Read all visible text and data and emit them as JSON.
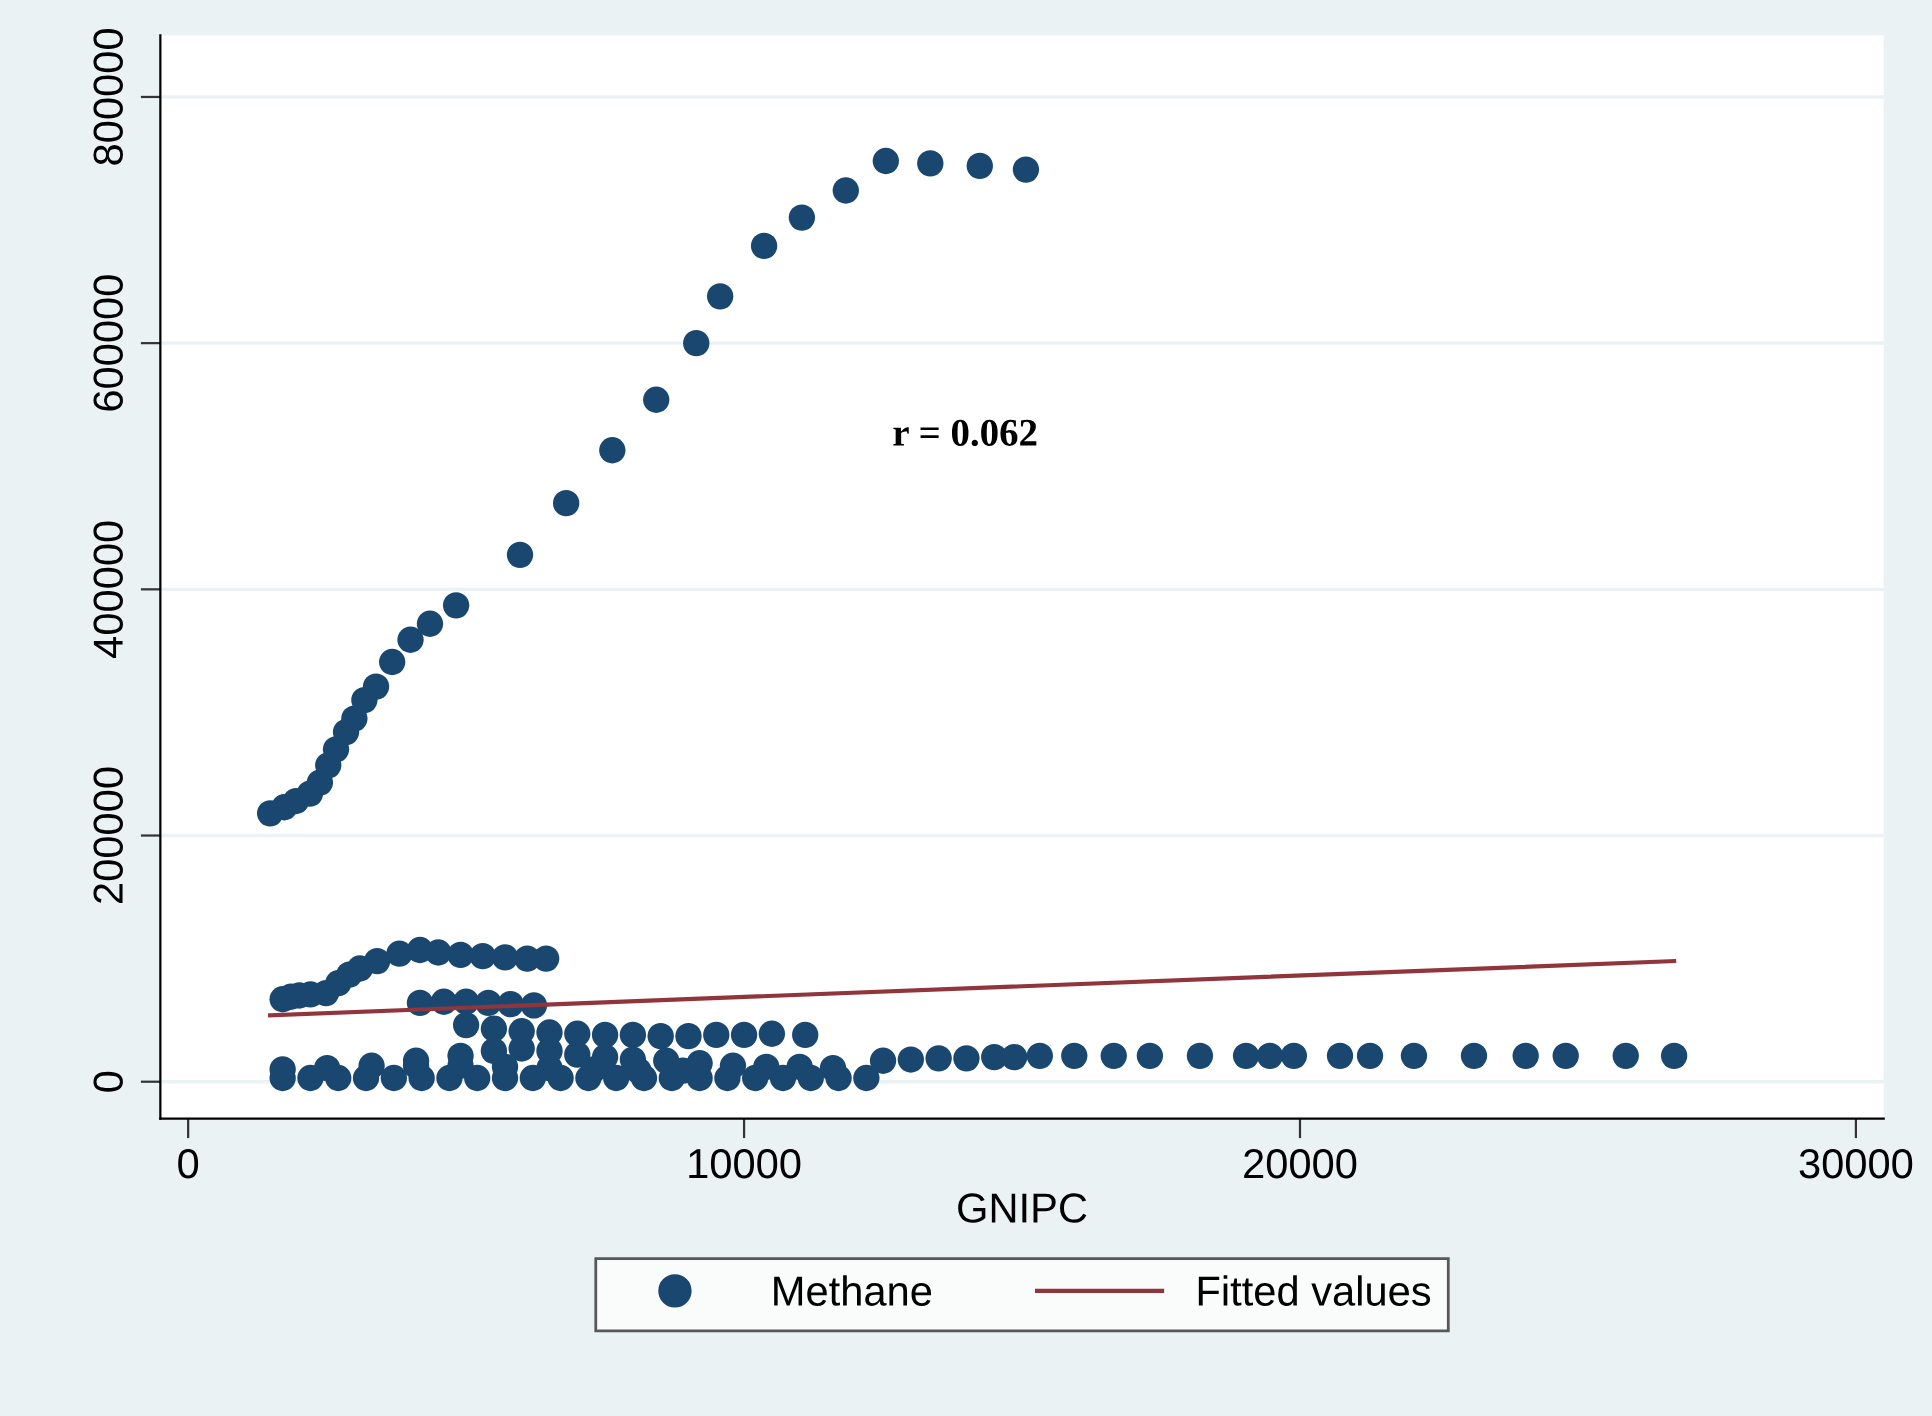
{
  "chart_data": {
    "type": "scatter",
    "xlabel": "GNIPC",
    "xlim": [
      -500,
      30500
    ],
    "ylim": [
      -30000,
      850000
    ],
    "xticks": [
      0,
      10000,
      20000,
      30000
    ],
    "yticks": [
      0,
      200000,
      400000,
      600000,
      800000
    ],
    "grid": "y",
    "legend": "bottom",
    "annotations": [
      "r = 0.062"
    ],
    "series": [
      {
        "name": "Methane",
        "color": "#1a476f",
        "marker": "circle",
        "x": [
          1475,
          1730,
          1940,
          2190,
          2370,
          2520,
          2660,
          2840,
          2990,
          3170,
          3380,
          3670,
          4000,
          4350,
          4820,
          5970,
          6800,
          7630,
          8420,
          9140,
          9570,
          10360,
          11040,
          11830,
          12550,
          13350,
          14240,
          15070,
          1700,
          1850,
          2000,
          2200,
          2480,
          2700,
          2900,
          3090,
          3400,
          3800,
          4170,
          4500,
          4900,
          5300,
          5700,
          6100,
          6440,
          4170,
          4600,
          5000,
          5400,
          5800,
          6220,
          5000,
          5500,
          6000,
          6500,
          7000,
          7500,
          8000,
          8500,
          9000,
          9500,
          10000,
          10500,
          11100,
          1700,
          2200,
          2700,
          3200,
          3700,
          4200,
          4700,
          5200,
          5700,
          6200,
          6700,
          7200,
          7700,
          8200,
          8700,
          9200,
          9700,
          10200,
          10700,
          11200,
          11700,
          12200,
          1700,
          2500,
          4100,
          4900,
          5700,
          6500,
          7300,
          8100,
          8900,
          3300,
          4100,
          4900,
          5500,
          6000,
          6500,
          7000,
          7500,
          8000,
          8600,
          9200,
          9800,
          10400,
          11000,
          11600,
          12500,
          13000,
          13500,
          14000,
          14500,
          14860,
          15320,
          15940,
          16650,
          17300,
          18200,
          19030,
          19460,
          19890,
          20720,
          21260,
          22050,
          23130,
          24060,
          24780,
          25860,
          26730
        ],
        "values": [
          218000,
          223000,
          228000,
          234000,
          243000,
          257000,
          270000,
          284000,
          295000,
          310000,
          321000,
          341000,
          359000,
          372000,
          387000,
          428000,
          470000,
          513000,
          554000,
          600000,
          638000,
          679000,
          702000,
          724000,
          748000,
          746000,
          744000,
          741000,
          67000,
          69000,
          70000,
          71000,
          72000,
          80000,
          87000,
          92000,
          98000,
          104000,
          107000,
          105000,
          103000,
          102000,
          101000,
          100000,
          100000,
          64000,
          65000,
          65000,
          64000,
          63000,
          62000,
          46000,
          43000,
          41000,
          40000,
          39000,
          38000,
          38000,
          37000,
          37000,
          38000,
          38000,
          39000,
          38000,
          3000,
          3000,
          3000,
          3000,
          3000,
          3000,
          3000,
          3000,
          3000,
          3000,
          3000,
          3000,
          3000,
          3000,
          3000,
          3000,
          3000,
          3000,
          3000,
          3000,
          3000,
          3000,
          10000,
          11000,
          13000,
          13000,
          12000,
          11000,
          10000,
          9000,
          9000,
          13000,
          17000,
          21000,
          25000,
          27000,
          25000,
          22000,
          20000,
          18000,
          17000,
          15000,
          13000,
          12000,
          12000,
          11000,
          17000,
          18000,
          19000,
          19000,
          20000,
          20000,
          21000,
          21000,
          21000,
          21000,
          21000,
          21000,
          21000,
          21000,
          21000,
          21000,
          21000,
          21000,
          21000,
          21000,
          21000,
          21000
        ]
      },
      {
        "name": "Fitted values",
        "color": "#90353b",
        "type": "line",
        "marker": "none",
        "x": [
          1475,
          26730
        ],
        "values": [
          54000,
          98000
        ]
      }
    ]
  }
}
